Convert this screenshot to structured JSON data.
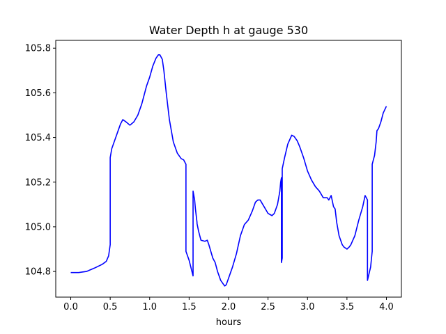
{
  "chart_data": {
    "type": "line",
    "title": "Water Depth h at gauge 530",
    "xlabel": "hours",
    "ylabel": "",
    "xlim": [
      -0.19,
      4.19
    ],
    "ylim": [
      104.685,
      105.835
    ],
    "xticks": [
      0.0,
      0.5,
      1.0,
      1.5,
      2.0,
      2.5,
      3.0,
      3.5,
      4.0
    ],
    "xtick_labels": [
      "0.0",
      "0.5",
      "1.0",
      "1.5",
      "2.0",
      "2.5",
      "3.0",
      "3.5",
      "4.0"
    ],
    "yticks": [
      104.8,
      105.0,
      105.2,
      105.4,
      105.6,
      105.8
    ],
    "ytick_labels": [
      "104.8",
      "105.0",
      "105.2",
      "105.4",
      "105.6",
      "105.8"
    ],
    "grid": false,
    "series": [
      {
        "color": "#0000ff",
        "x": [
          0.0,
          0.1,
          0.2,
          0.3,
          0.4,
          0.45,
          0.48,
          0.5,
          0.5,
          0.52,
          0.55,
          0.58,
          0.6,
          0.63,
          0.66,
          0.7,
          0.75,
          0.8,
          0.85,
          0.9,
          0.93,
          0.96,
          1.0,
          1.04,
          1.08,
          1.11,
          1.13,
          1.16,
          1.18,
          1.21,
          1.25,
          1.3,
          1.35,
          1.4,
          1.43,
          1.46,
          1.46,
          1.5,
          1.55,
          1.55,
          1.57,
          1.58,
          1.6,
          1.6,
          1.62,
          1.65,
          1.7,
          1.73,
          1.75,
          1.8,
          1.83,
          1.86,
          1.9,
          1.95,
          1.97,
          2.0,
          2.05,
          2.1,
          2.15,
          2.2,
          2.25,
          2.3,
          2.34,
          2.37,
          2.4,
          2.45,
          2.5,
          2.55,
          2.58,
          2.62,
          2.65,
          2.66,
          2.67,
          2.67,
          2.68,
          2.68,
          2.71,
          2.75,
          2.8,
          2.83,
          2.87,
          2.9,
          2.95,
          3.0,
          3.05,
          3.1,
          3.15,
          3.2,
          3.22,
          3.25,
          3.27,
          3.3,
          3.33,
          3.35,
          3.37,
          3.4,
          3.44,
          3.46,
          3.5,
          3.53,
          3.55,
          3.6,
          3.65,
          3.7,
          3.73,
          3.76,
          3.76,
          3.8,
          3.82,
          3.82,
          3.85,
          3.87,
          3.88,
          3.9,
          3.93,
          3.96,
          4.0
        ],
        "y": [
          104.795,
          104.795,
          104.8,
          104.815,
          104.832,
          104.845,
          104.87,
          104.92,
          105.31,
          105.35,
          105.38,
          105.41,
          105.43,
          105.46,
          105.48,
          105.47,
          105.455,
          105.47,
          105.5,
          105.55,
          105.59,
          105.63,
          105.67,
          105.72,
          105.755,
          105.77,
          105.77,
          105.75,
          105.7,
          105.6,
          105.48,
          105.38,
          105.33,
          105.305,
          105.3,
          105.28,
          104.89,
          104.85,
          104.78,
          105.16,
          105.12,
          105.08,
          105.02,
          105.015,
          104.98,
          104.94,
          104.935,
          104.94,
          104.92,
          104.86,
          104.84,
          104.8,
          104.76,
          104.735,
          104.74,
          104.77,
          104.82,
          104.88,
          104.96,
          105.01,
          105.03,
          105.07,
          105.11,
          105.12,
          105.12,
          105.09,
          105.06,
          105.05,
          105.06,
          105.1,
          105.16,
          105.2,
          105.22,
          104.84,
          104.86,
          105.26,
          105.31,
          105.37,
          105.41,
          105.405,
          105.385,
          105.36,
          105.31,
          105.25,
          105.21,
          105.18,
          105.16,
          105.13,
          105.13,
          105.13,
          105.12,
          105.14,
          105.09,
          105.08,
          105.02,
          104.96,
          104.92,
          104.91,
          104.9,
          104.91,
          104.92,
          104.96,
          105.03,
          105.09,
          105.14,
          105.12,
          104.76,
          104.82,
          104.89,
          105.28,
          105.32,
          105.38,
          105.43,
          105.44,
          105.47,
          105.51,
          105.54
        ]
      }
    ]
  }
}
